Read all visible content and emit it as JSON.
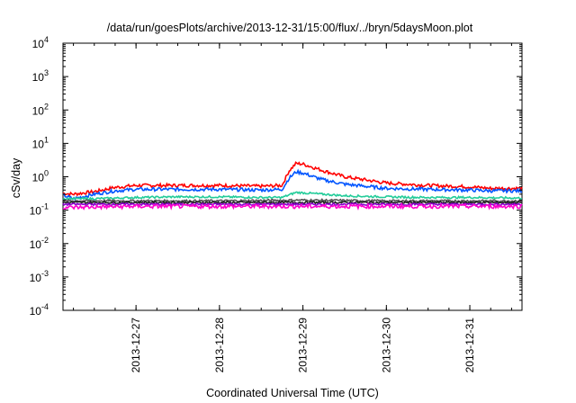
{
  "chart_data": {
    "type": "line",
    "title": "/data/run/goesPlots/archive/2013-12-31/15:00/flux/../bryn/5daysMoon.plot",
    "xlabel": "Coordinated Universal Time (UTC)",
    "ylabel": "cSv/day",
    "yscale": "log",
    "ylim": [
      0.0001,
      10000
    ],
    "xlim": [
      "2013-12-26 03:00",
      "2013-12-31 15:00"
    ],
    "x_ticks": [
      "2013-12-27",
      "2013-12-28",
      "2013-12-29",
      "2013-12-30",
      "2013-12-31"
    ],
    "y_ticks": [
      {
        "base": "10",
        "exp": "4",
        "value": 10000
      },
      {
        "base": "10",
        "exp": "3",
        "value": 1000
      },
      {
        "base": "10",
        "exp": "2",
        "value": 100
      },
      {
        "base": "10",
        "exp": "1",
        "value": 10
      },
      {
        "base": "10",
        "exp": "0",
        "value": 1
      },
      {
        "base": "10",
        "exp": "-1",
        "value": 0.1
      },
      {
        "base": "10",
        "exp": "-2",
        "value": 0.01
      },
      {
        "base": "10",
        "exp": "-3",
        "value": 0.001
      },
      {
        "base": "10",
        "exp": "-4",
        "value": 0.0001
      }
    ],
    "grid": false,
    "legend": "none",
    "series": [
      {
        "color": "#ff0000",
        "x": [
          "2013-12-26 03:00",
          "2013-12-26 06:00",
          "2013-12-26 12:00",
          "2013-12-26 18:00",
          "2013-12-27 00:00",
          "2013-12-27 12:00",
          "2013-12-28 00:00",
          "2013-12-28 12:00",
          "2013-12-28 18:00",
          "2013-12-28 20:00",
          "2013-12-28 22:00",
          "2013-12-29 00:00",
          "2013-12-29 03:00",
          "2013-12-29 06:00",
          "2013-12-29 12:00",
          "2013-12-30 00:00",
          "2013-12-30 12:00",
          "2013-12-31 00:00",
          "2013-12-31 06:00",
          "2013-12-31 15:00"
        ],
        "values": [
          0.32,
          0.3,
          0.36,
          0.48,
          0.55,
          0.55,
          0.55,
          0.52,
          0.55,
          1.5,
          2.5,
          2.4,
          1.9,
          1.5,
          1.0,
          0.65,
          0.55,
          0.5,
          0.45,
          0.45
        ]
      },
      {
        "color": "#0055ff",
        "x": [
          "2013-12-26 03:00",
          "2013-12-26 06:00",
          "2013-12-26 12:00",
          "2013-12-26 18:00",
          "2013-12-27 00:00",
          "2013-12-27 12:00",
          "2013-12-28 00:00",
          "2013-12-28 12:00",
          "2013-12-28 18:00",
          "2013-12-28 20:00",
          "2013-12-28 22:00",
          "2013-12-29 00:00",
          "2013-12-29 03:00",
          "2013-12-29 06:00",
          "2013-12-29 12:00",
          "2013-12-30 00:00",
          "2013-12-30 12:00",
          "2013-12-31 00:00",
          "2013-12-31 06:00",
          "2013-12-31 15:00"
        ],
        "values": [
          0.28,
          0.22,
          0.3,
          0.38,
          0.42,
          0.42,
          0.42,
          0.4,
          0.42,
          0.9,
          1.4,
          1.3,
          1.0,
          0.8,
          0.6,
          0.45,
          0.42,
          0.4,
          0.38,
          0.38
        ]
      },
      {
        "color": "#22cc99",
        "x": [
          "2013-12-26 03:00",
          "2013-12-26 12:00",
          "2013-12-27 00:00",
          "2013-12-27 12:00",
          "2013-12-28 00:00",
          "2013-12-28 12:00",
          "2013-12-28 18:00",
          "2013-12-28 22:00",
          "2013-12-29 00:00",
          "2013-12-29 06:00",
          "2013-12-29 12:00",
          "2013-12-30 00:00",
          "2013-12-30 12:00",
          "2013-12-31 00:00",
          "2013-12-31 15:00"
        ],
        "values": [
          0.22,
          0.22,
          0.24,
          0.25,
          0.25,
          0.24,
          0.24,
          0.34,
          0.33,
          0.3,
          0.27,
          0.25,
          0.24,
          0.24,
          0.23
        ]
      },
      {
        "color": "#555555",
        "x": [
          "2013-12-26 03:00",
          "2013-12-27 00:00",
          "2013-12-28 00:00",
          "2013-12-29 00:00",
          "2013-12-30 00:00",
          "2013-12-31 00:00",
          "2013-12-31 15:00"
        ],
        "values": [
          0.19,
          0.19,
          0.19,
          0.2,
          0.19,
          0.19,
          0.19
        ]
      },
      {
        "color": "#222222",
        "x": [
          "2013-12-26 03:00",
          "2013-12-27 00:00",
          "2013-12-28 00:00",
          "2013-12-29 00:00",
          "2013-12-30 00:00",
          "2013-12-31 00:00",
          "2013-12-31 15:00"
        ],
        "values": [
          0.17,
          0.17,
          0.17,
          0.17,
          0.17,
          0.17,
          0.17
        ]
      },
      {
        "color": "#8800cc",
        "x": [
          "2013-12-26 03:00",
          "2013-12-27 00:00",
          "2013-12-28 00:00",
          "2013-12-29 00:00",
          "2013-12-30 00:00",
          "2013-12-31 00:00",
          "2013-12-31 15:00"
        ],
        "values": [
          0.15,
          0.15,
          0.15,
          0.15,
          0.15,
          0.15,
          0.15
        ]
      },
      {
        "color": "#ff00cc",
        "x": [
          "2013-12-26 03:00",
          "2013-12-27 00:00",
          "2013-12-28 00:00",
          "2013-12-29 00:00",
          "2013-12-30 00:00",
          "2013-12-31 00:00",
          "2013-12-31 15:00"
        ],
        "values": [
          0.12,
          0.13,
          0.13,
          0.13,
          0.13,
          0.13,
          0.13
        ]
      }
    ]
  }
}
